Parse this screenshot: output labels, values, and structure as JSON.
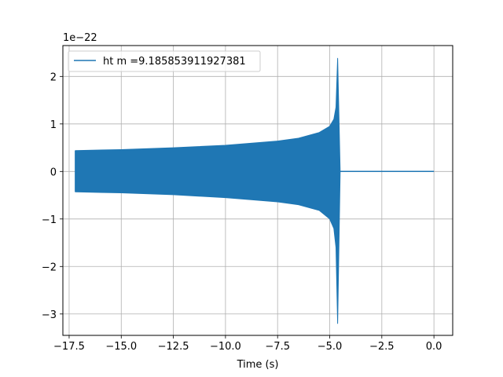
{
  "chart_data": {
    "type": "line",
    "xlabel": "Time (s)",
    "ylabel": "",
    "y_offset_text": "1e−22",
    "xlim": [
      -17.8,
      0.9
    ],
    "ylim": [
      -3.45,
      2.65
    ],
    "grid": true,
    "legend_position": "upper-left",
    "x_ticks": [
      -17.5,
      -15.0,
      -12.5,
      -10.0,
      -7.5,
      -5.0,
      -2.5,
      0.0
    ],
    "x_tick_labels": [
      "−17.5",
      "−15.0",
      "−12.5",
      "−10.0",
      "−7.5",
      "−5.0",
      "−2.5",
      "0.0"
    ],
    "y_ticks": [
      -3,
      -2,
      -1,
      0,
      1,
      2
    ],
    "y_tick_labels": [
      "−3",
      "−2",
      "−1",
      "0",
      "1",
      "2"
    ],
    "series": [
      {
        "name": "ht m =9.185853911927381",
        "color": "#1f77b4",
        "upper_envelope": {
          "x": [
            -17.2,
            -15.0,
            -12.5,
            -10.0,
            -7.5,
            -6.5,
            -5.5,
            -5.0,
            -4.8,
            -4.7,
            -4.62
          ],
          "y": [
            0.44,
            0.46,
            0.5,
            0.55,
            0.64,
            0.7,
            0.82,
            0.95,
            1.1,
            1.35,
            2.38
          ]
        },
        "lower_envelope": {
          "x": [
            -17.2,
            -15.0,
            -12.5,
            -10.0,
            -7.5,
            -6.5,
            -5.5,
            -5.0,
            -4.8,
            -4.7,
            -4.62
          ],
          "y": [
            -0.43,
            -0.45,
            -0.49,
            -0.55,
            -0.64,
            -0.7,
            -0.82,
            -1.0,
            -1.2,
            -1.6,
            -3.2
          ]
        },
        "ringdown_end_x": -4.5,
        "tail": {
          "x": [
            -4.5,
            0.0
          ],
          "y": [
            0.0,
            0.0
          ]
        }
      }
    ]
  }
}
